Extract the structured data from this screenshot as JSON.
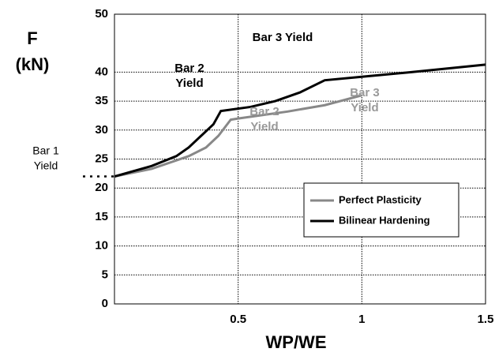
{
  "chart_data": {
    "type": "line",
    "y_label": [
      "F",
      "(kN)"
    ],
    "x_label": "WP/WE",
    "xlim": [
      0,
      1.5
    ],
    "xticks": [
      0.5,
      1,
      1.5
    ],
    "ylim": [
      0,
      50
    ],
    "yticks": [
      0,
      5,
      10,
      15,
      20,
      25,
      30,
      35,
      40,
      50
    ],
    "grid": true,
    "legend": "lower right",
    "series": [
      {
        "name": "Perfect Plasticity",
        "color": "#888888",
        "x": [
          0,
          0.15,
          0.3,
          0.37,
          0.42,
          0.47,
          0.5,
          0.7,
          0.85,
          1.0
        ],
        "values": [
          22,
          23.3,
          25.5,
          27,
          29,
          31.8,
          32,
          33.2,
          34.3,
          36
        ]
      },
      {
        "name": "Bilinear Hardening",
        "color": "#000000",
        "x": [
          0,
          0.15,
          0.25,
          0.3,
          0.35,
          0.4,
          0.43,
          0.55,
          0.65,
          0.75,
          0.85,
          1.0,
          1.2,
          1.5
        ],
        "values": [
          22,
          23.8,
          25.5,
          27,
          29,
          31,
          33.3,
          34,
          35,
          36.5,
          38.6,
          39.2,
          40,
          41.3
        ]
      }
    ],
    "annotations": [
      {
        "text": [
          "Bar 1",
          "Yield"
        ],
        "color": "#000000"
      },
      {
        "text": [
          "Bar 2",
          "Yield"
        ],
        "color": "#000000"
      },
      {
        "text": [
          "Bar 3 Yield"
        ],
        "color": "#000000"
      },
      {
        "text": [
          "Bar 2",
          "Yield"
        ],
        "color": "#999999"
      },
      {
        "text": [
          "Bar 3",
          "Yield"
        ],
        "color": "#999999"
      }
    ]
  }
}
